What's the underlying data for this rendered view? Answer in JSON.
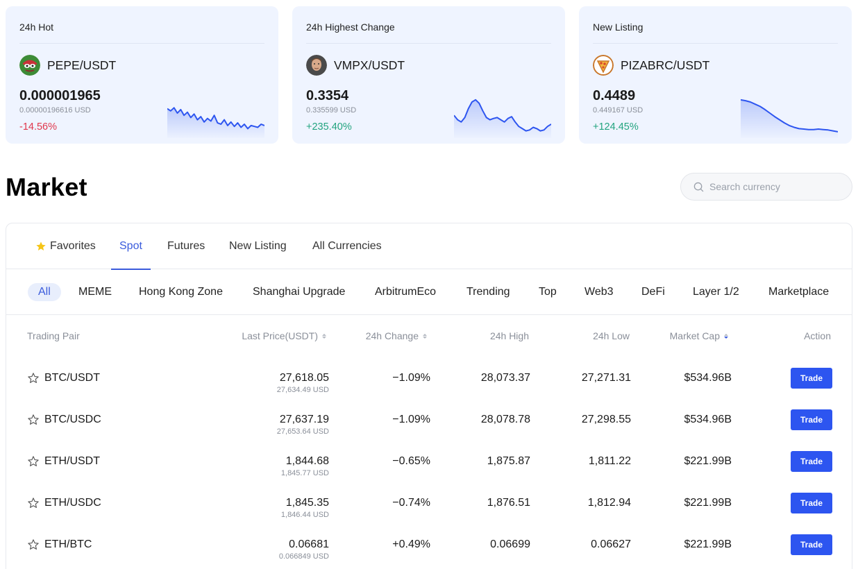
{
  "cards": [
    {
      "title": "24h Hot",
      "pair": "PEPE/USDT",
      "icon": "pepe-coin-icon",
      "price": "0.000001965",
      "usd": "0.00000196616 USD",
      "change": "-14.56%",
      "trend": "neg",
      "spark": [
        0.6,
        0.55,
        0.62,
        0.5,
        0.58,
        0.45,
        0.52,
        0.4,
        0.48,
        0.35,
        0.42,
        0.3,
        0.38,
        0.32,
        0.45,
        0.28,
        0.25,
        0.35,
        0.22,
        0.3,
        0.2,
        0.28,
        0.18,
        0.25,
        0.15,
        0.22,
        0.2,
        0.18,
        0.25,
        0.22
      ]
    },
    {
      "title": "24h Highest Change",
      "pair": "VMPX/USDT",
      "icon": "vmpx-coin-icon",
      "price": "0.3354",
      "usd": "0.335599 USD",
      "change": "+235.40%",
      "trend": "pos",
      "spark": [
        0.45,
        0.35,
        0.3,
        0.4,
        0.6,
        0.75,
        0.8,
        0.72,
        0.55,
        0.4,
        0.35,
        0.38,
        0.4,
        0.35,
        0.3,
        0.38,
        0.42,
        0.3,
        0.2,
        0.15,
        0.1,
        0.12,
        0.18,
        0.15,
        0.1,
        0.12,
        0.2,
        0.25
      ]
    },
    {
      "title": "New Listing",
      "pair": "PIZABRC/USDT",
      "icon": "pizza-coin-icon",
      "price": "0.4489",
      "usd": "0.449167 USD",
      "change": "+124.45%",
      "trend": "pos",
      "spark": [
        0.8,
        0.78,
        0.75,
        0.7,
        0.65,
        0.58,
        0.5,
        0.42,
        0.35,
        0.28,
        0.22,
        0.18,
        0.15,
        0.14,
        0.13,
        0.13,
        0.14,
        0.13,
        0.12,
        0.1,
        0.08
      ]
    }
  ],
  "market_title": "Market",
  "search": {
    "placeholder": "Search currency"
  },
  "tabs": [
    "Favorites",
    "Spot",
    "Futures",
    "New Listing",
    "All Currencies"
  ],
  "active_tab": "Spot",
  "chips": [
    "All",
    "MEME",
    "Hong Kong Zone",
    "Shanghai Upgrade",
    "ArbitrumEco",
    "Trending",
    "Top",
    "Web3",
    "DeFi",
    "Layer 1/2",
    "Marketplace"
  ],
  "active_chip": "All",
  "columns": {
    "pair": "Trading Pair",
    "price": "Last Price(USDT)",
    "change": "24h Change",
    "high": "24h High",
    "low": "24h Low",
    "cap": "Market Cap",
    "action": "Action"
  },
  "rows": [
    {
      "pair": "BTC/USDT",
      "price": "27,618.05",
      "usd": "27,634.49 USD",
      "change": "−1.09%",
      "trend": "neg",
      "high": "28,073.37",
      "low": "27,271.31",
      "cap": "$534.96B",
      "action": "Trade"
    },
    {
      "pair": "BTC/USDC",
      "price": "27,637.19",
      "usd": "27,653.64 USD",
      "change": "−1.09%",
      "trend": "neg",
      "high": "28,078.78",
      "low": "27,298.55",
      "cap": "$534.96B",
      "action": "Trade"
    },
    {
      "pair": "ETH/USDT",
      "price": "1,844.68",
      "usd": "1,845.77 USD",
      "change": "−0.65%",
      "trend": "neg",
      "high": "1,875.87",
      "low": "1,811.22",
      "cap": "$221.99B",
      "action": "Trade"
    },
    {
      "pair": "ETH/USDC",
      "price": "1,845.35",
      "usd": "1,846.44 USD",
      "change": "−0.74%",
      "trend": "neg",
      "high": "1,876.51",
      "low": "1,812.94",
      "cap": "$221.99B",
      "action": "Trade"
    },
    {
      "pair": "ETH/BTC",
      "price": "0.06681",
      "usd": "0.066849 USD",
      "change": "+0.49%",
      "trend": "pos",
      "high": "0.06699",
      "low": "0.06627",
      "cap": "$221.99B",
      "action": "Trade"
    }
  ],
  "colors": {
    "accent": "#3a5bdc",
    "button": "#2d55f0",
    "negative": "#e0364b",
    "positive": "#23a47f",
    "card_bg": "#eff4ff"
  }
}
